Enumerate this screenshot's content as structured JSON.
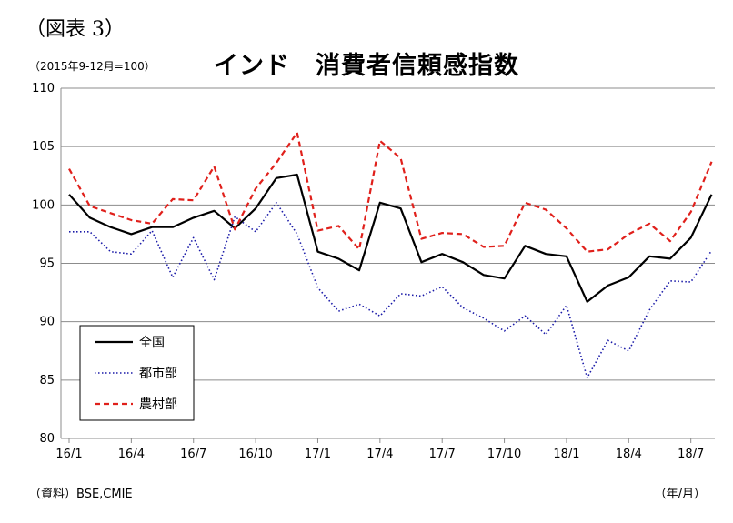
{
  "figure_label": "（図表 3）",
  "unit_note": "（2015年9-12月=100）",
  "source_note": "（資料）BSE,CMIE",
  "x_unit_note": "（年/月）",
  "chart_data": {
    "type": "line",
    "title": "インド　消費者信頼感指数",
    "xlabel": "",
    "ylabel": "",
    "ylim": [
      80,
      110
    ],
    "yticks": [
      80,
      85,
      90,
      95,
      100,
      105,
      110
    ],
    "x": [
      "16/1",
      "16/2",
      "16/3",
      "16/4",
      "16/5",
      "16/6",
      "16/7",
      "16/8",
      "16/9",
      "16/10",
      "16/11",
      "16/12",
      "17/1",
      "17/2",
      "17/3",
      "17/4",
      "17/5",
      "17/6",
      "17/7",
      "17/8",
      "17/9",
      "17/10",
      "17/11",
      "17/12",
      "18/1",
      "18/2",
      "18/3",
      "18/4",
      "18/5",
      "18/6",
      "18/7",
      "18/8"
    ],
    "x_tick_labels": [
      "16/1",
      "16/4",
      "16/7",
      "16/10",
      "17/1",
      "17/4",
      "17/7",
      "17/10",
      "18/1",
      "18/4",
      "18/7"
    ],
    "grid": "horizontal",
    "legend_position": "bottom-left",
    "series": [
      {
        "name": "全国",
        "color": "#000000",
        "style": "solid",
        "values": [
          100.9,
          98.9,
          98.1,
          97.5,
          98.1,
          98.1,
          98.9,
          99.5,
          98.0,
          99.7,
          102.3,
          102.6,
          96.0,
          95.4,
          94.4,
          100.2,
          99.7,
          95.1,
          95.8,
          95.1,
          94.0,
          93.7,
          96.5,
          95.8,
          95.6,
          91.7,
          93.1,
          93.8,
          95.6,
          95.4,
          97.2,
          100.9
        ]
      },
      {
        "name": "都市部",
        "color": "#1a1aa8",
        "style": "dotted",
        "values": [
          97.7,
          97.7,
          96.0,
          95.8,
          97.8,
          93.8,
          97.2,
          93.6,
          99.0,
          97.7,
          100.2,
          97.5,
          92.9,
          90.9,
          91.5,
          90.5,
          92.4,
          92.2,
          93.0,
          91.2,
          90.3,
          89.2,
          90.5,
          88.9,
          91.4,
          85.2,
          88.4,
          87.5,
          91.0,
          93.5,
          93.4,
          96.1
        ]
      },
      {
        "name": "農村部",
        "color": "#e0201b",
        "style": "dashed",
        "values": [
          103.1,
          99.9,
          99.3,
          98.7,
          98.4,
          100.5,
          100.4,
          103.3,
          97.9,
          101.4,
          103.6,
          106.2,
          97.8,
          98.2,
          96.2,
          105.5,
          104.0,
          97.1,
          97.6,
          97.5,
          96.4,
          96.5,
          100.2,
          99.6,
          98.0,
          96.0,
          96.2,
          97.5,
          98.4,
          96.9,
          99.4,
          103.7
        ]
      }
    ]
  }
}
